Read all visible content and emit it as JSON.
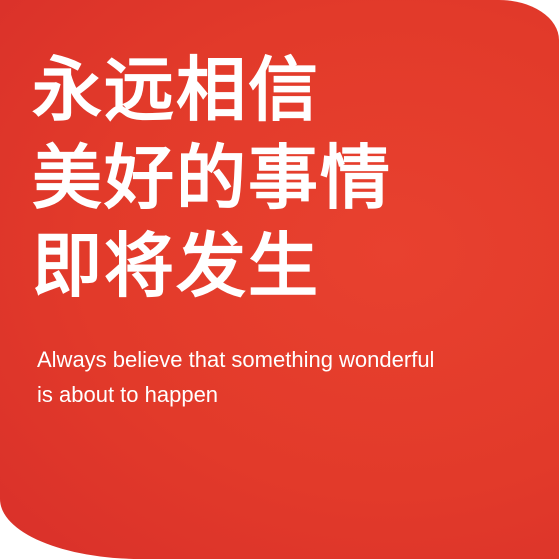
{
  "background_color": "#e23a2a",
  "text_color": "#ffffff",
  "headline_lines": [
    "永远相信",
    "美好的事情",
    "即将发生"
  ],
  "subtitle_lines": [
    "Always believe that something wonderful",
    "is about to happen"
  ]
}
